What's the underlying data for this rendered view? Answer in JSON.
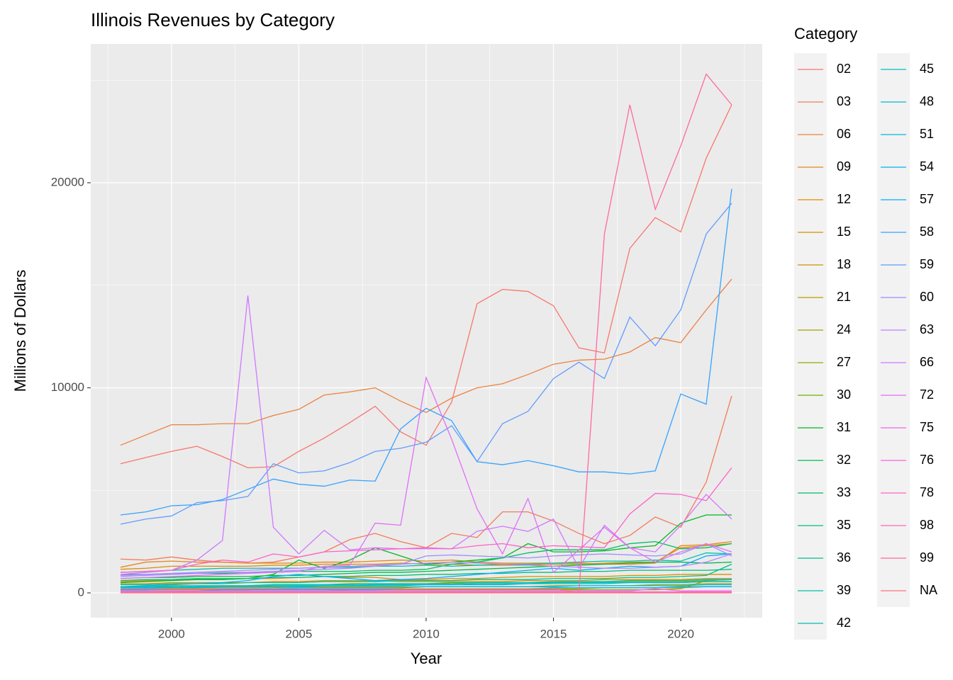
{
  "chart_data": {
    "type": "line",
    "title": "Illinois Revenues by Category",
    "x_label": "Year",
    "y_label": "Millions of Dollars",
    "legend_title": "Category",
    "x": [
      1998,
      1999,
      2000,
      2001,
      2002,
      2003,
      2004,
      2005,
      2006,
      2007,
      2008,
      2009,
      2010,
      2011,
      2012,
      2013,
      2014,
      2015,
      2016,
      2017,
      2018,
      2019,
      2020,
      2021,
      2022
    ],
    "xlim": [
      1996.83,
      2023.2
    ],
    "ylim": [
      -1209,
      26770
    ],
    "xticks": [
      2000,
      2005,
      2010,
      2015,
      2020
    ],
    "yticks": [
      0,
      10000,
      20000
    ],
    "grid": true,
    "series": [
      {
        "name": "02",
        "color": "#F8766D",
        "values": [
          6300,
          6600,
          6900,
          7150,
          6650,
          6100,
          6150,
          6900,
          7550,
          8300,
          9100,
          7850,
          7200,
          9300,
          14100,
          14800,
          14700,
          14000,
          11950,
          11700,
          16800,
          18300,
          17600,
          21200,
          23800
        ]
      },
      {
        "name": "03",
        "color": "#F37B59",
        "values": [
          1650,
          1600,
          1750,
          1600,
          1500,
          1450,
          1500,
          1750,
          2000,
          2600,
          2900,
          2500,
          2200,
          2900,
          2700,
          3950,
          3950,
          3500,
          2900,
          2400,
          2800,
          3700,
          3200,
          5400,
          9600
        ]
      },
      {
        "name": "06",
        "color": "#ED8141",
        "values": [
          7200,
          7700,
          8200,
          8200,
          8250,
          8250,
          8650,
          8950,
          9650,
          9800,
          10000,
          9350,
          8800,
          9500,
          10000,
          10200,
          10650,
          11150,
          11350,
          11400,
          11750,
          12450,
          12200,
          13800,
          15300
        ]
      },
      {
        "name": "09",
        "color": "#E7861B",
        "values": [
          1250,
          1500,
          1550,
          1500,
          1500,
          1450,
          1450,
          1450,
          1500,
          1500,
          1550,
          1600,
          1550,
          1600,
          1500,
          1450,
          1450,
          1450,
          1450,
          1400,
          1400,
          1450,
          2300,
          2350,
          2500
        ]
      },
      {
        "name": "12",
        "color": "#DF8C00",
        "values": [
          1150,
          1200,
          1300,
          1300,
          1300,
          1300,
          1350,
          1350,
          1400,
          1400,
          1400,
          1450,
          1400,
          1400,
          1350,
          1350,
          1350,
          1400,
          1400,
          1450,
          1500,
          1500,
          2200,
          2300,
          2400
        ]
      },
      {
        "name": "15",
        "color": "#D69100",
        "values": [
          550,
          600,
          600,
          650,
          650,
          700,
          700,
          750,
          800,
          750,
          750,
          650,
          650,
          700,
          700,
          750,
          800,
          800,
          800,
          800,
          850,
          850,
          900,
          900,
          900
        ]
      },
      {
        "name": "18",
        "color": "#CC9600",
        "values": [
          450,
          450,
          500,
          500,
          500,
          500,
          550,
          550,
          600,
          600,
          600,
          550,
          550,
          550,
          550,
          550,
          600,
          600,
          600,
          650,
          650,
          650,
          650,
          700,
          700
        ]
      },
      {
        "name": "21",
        "color": "#B29F00",
        "values": [
          200,
          200,
          200,
          250,
          250,
          250,
          250,
          300,
          300,
          300,
          300,
          300,
          300,
          300,
          300,
          300,
          300,
          350,
          350,
          350,
          350,
          400,
          400,
          450,
          450
        ]
      },
      {
        "name": "24",
        "color": "#A3A500",
        "values": [
          150,
          150,
          150,
          150,
          150,
          150,
          200,
          200,
          200,
          200,
          200,
          200,
          200,
          200,
          200,
          200,
          200,
          200,
          200,
          250,
          250,
          250,
          250,
          300,
          300
        ]
      },
      {
        "name": "27",
        "color": "#8EAB00",
        "values": [
          100,
          100,
          100,
          100,
          100,
          100,
          100,
          100,
          100,
          150,
          150,
          150,
          150,
          150,
          150,
          150,
          150,
          150,
          150,
          150,
          150,
          150,
          200,
          600,
          650
        ]
      },
      {
        "name": "30",
        "color": "#6BB100",
        "values": [
          300,
          300,
          350,
          350,
          350,
          350,
          400,
          400,
          400,
          450,
          450,
          450,
          450,
          500,
          500,
          500,
          500,
          500,
          550,
          550,
          550,
          550,
          550,
          600,
          650
        ]
      },
      {
        "name": "31",
        "color": "#00B81F",
        "values": [
          500,
          550,
          600,
          650,
          650,
          700,
          900,
          1600,
          1200,
          1600,
          2200,
          1800,
          1400,
          1500,
          1600,
          1700,
          2400,
          2000,
          2000,
          2050,
          2200,
          2300,
          3400,
          3800,
          3800
        ]
      },
      {
        "name": "32",
        "color": "#00BB4B",
        "values": [
          700,
          750,
          750,
          800,
          800,
          800,
          850,
          850,
          900,
          950,
          1000,
          1000,
          1050,
          1100,
          1150,
          1200,
          1250,
          1300,
          1350,
          1400,
          1450,
          1500,
          1500,
          1450,
          1500
        ]
      },
      {
        "name": "33",
        "color": "#00BD62",
        "values": [
          900,
          900,
          950,
          950,
          950,
          1000,
          1000,
          1050,
          1050,
          1050,
          1100,
          1100,
          1150,
          1400,
          1500,
          1700,
          1950,
          2100,
          2100,
          2100,
          2400,
          2500,
          2150,
          2200,
          2400
        ]
      },
      {
        "name": "35",
        "color": "#00BF77",
        "values": [
          600,
          650,
          650,
          700,
          700,
          700,
          750,
          750,
          800,
          800,
          850,
          850,
          900,
          900,
          950,
          950,
          1000,
          1000,
          1050,
          1050,
          1100,
          1100,
          1100,
          1100,
          1150
        ]
      },
      {
        "name": "36",
        "color": "#00C08B",
        "values": [
          400,
          400,
          450,
          450,
          450,
          500,
          500,
          500,
          550,
          550,
          550,
          600,
          600,
          600,
          650,
          650,
          650,
          700,
          700,
          700,
          750,
          750,
          800,
          850,
          1400
        ]
      },
      {
        "name": "39",
        "color": "#00C19F",
        "values": [
          250,
          250,
          250,
          300,
          300,
          300,
          350,
          350,
          350,
          350,
          400,
          400,
          400,
          400,
          450,
          450,
          450,
          500,
          500,
          500,
          500,
          500,
          500,
          550,
          550
        ]
      },
      {
        "name": "42",
        "color": "#00C0B2",
        "values": [
          1000,
          1050,
          1100,
          1150,
          1200,
          1200,
          1200,
          1200,
          1250,
          1250,
          1300,
          1300,
          1350,
          1300,
          1350,
          1400,
          1400,
          1450,
          1500,
          1550,
          1550,
          1600,
          1550,
          1950,
          1900
        ]
      },
      {
        "name": "45",
        "color": "#00BEC3",
        "values": [
          300,
          300,
          300,
          350,
          350,
          350,
          400,
          400,
          400,
          400,
          450,
          450,
          450,
          450,
          500,
          500,
          500,
          550,
          550,
          550,
          600,
          600,
          600,
          650,
          650
        ]
      },
      {
        "name": "48",
        "color": "#00BCD4",
        "values": [
          150,
          150,
          200,
          200,
          200,
          200,
          200,
          250,
          250,
          250,
          250,
          250,
          300,
          300,
          300,
          300,
          300,
          300,
          350,
          350,
          350,
          350,
          350,
          400,
          400
        ]
      },
      {
        "name": "51",
        "color": "#00B8E3",
        "values": [
          200,
          250,
          250,
          250,
          300,
          300,
          300,
          300,
          350,
          350,
          350,
          350,
          400,
          400,
          400,
          400,
          450,
          450,
          450,
          450,
          500,
          500,
          500,
          550,
          550
        ]
      },
      {
        "name": "54",
        "color": "#00B2F0",
        "values": [
          100,
          100,
          100,
          100,
          150,
          150,
          150,
          150,
          150,
          150,
          150,
          200,
          200,
          200,
          200,
          200,
          200,
          250,
          250,
          250,
          250,
          250,
          300,
          300,
          300
        ]
      },
      {
        "name": "57",
        "color": "#00ABFD",
        "values": [
          300,
          350,
          400,
          450,
          500,
          600,
          800,
          900,
          800,
          700,
          600,
          650,
          700,
          800,
          900,
          1000,
          1100,
          1200,
          1100,
          1200,
          1300,
          1250,
          1300,
          1800,
          1900
        ]
      },
      {
        "name": "58",
        "color": "#35A2FF",
        "values": [
          3800,
          3950,
          4250,
          4300,
          4550,
          5050,
          5550,
          5300,
          5200,
          5500,
          5450,
          8000,
          9000,
          8400,
          6400,
          6250,
          6450,
          6200,
          5900,
          5900,
          5800,
          5950,
          9700,
          9200,
          19700
        ]
      },
      {
        "name": "59",
        "color": "#619CFF",
        "values": [
          3350,
          3600,
          3750,
          4400,
          4500,
          4700,
          6300,
          5850,
          5950,
          6350,
          6900,
          7050,
          7350,
          8150,
          6400,
          8250,
          8850,
          10450,
          11250,
          10450,
          13450,
          12050,
          13800,
          17500,
          19000
        ]
      },
      {
        "name": "60",
        "color": "#9C8DFF",
        "values": [
          800,
          850,
          900,
          950,
          1000,
          1000,
          1050,
          1100,
          1150,
          1200,
          1300,
          1400,
          1800,
          1850,
          1800,
          1750,
          1700,
          1800,
          1850,
          1900,
          1850,
          1800,
          1900,
          2400,
          1800
        ]
      },
      {
        "name": "63",
        "color": "#B983FF",
        "values": [
          850,
          900,
          950,
          1000,
          1050,
          1100,
          1150,
          1200,
          1250,
          1300,
          1350,
          1400,
          1450,
          1500,
          1450,
          1400,
          1350,
          1300,
          1250,
          1200,
          1200,
          1250,
          1300,
          1500,
          1900
        ]
      },
      {
        "name": "66",
        "color": "#CF78FF",
        "values": [
          900,
          1000,
          1100,
          1600,
          2550,
          14500,
          3200,
          1900,
          3050,
          2100,
          2200,
          2150,
          2150,
          2150,
          3000,
          3250,
          3000,
          3600,
          1200,
          3300,
          2200,
          2000,
          3300,
          4800,
          3600
        ]
      },
      {
        "name": "72",
        "color": "#E26EF7",
        "values": [
          700,
          750,
          800,
          850,
          900,
          950,
          1000,
          1050,
          1300,
          1350,
          3400,
          3300,
          10500,
          7500,
          4100,
          1900,
          4600,
          1000,
          2100,
          3200,
          2200,
          1500,
          2000,
          2400,
          2000
        ]
      },
      {
        "name": "75",
        "color": "#F066EA",
        "values": [
          100,
          100,
          100,
          100,
          100,
          100,
          100,
          100,
          100,
          100,
          100,
          100,
          100,
          100,
          100,
          100,
          100,
          100,
          100,
          100,
          100,
          200,
          100,
          100,
          100
        ]
      },
      {
        "name": "76",
        "color": "#FA62DB",
        "values": [
          50,
          50,
          50,
          50,
          50,
          50,
          50,
          50,
          50,
          50,
          50,
          50,
          50,
          50,
          50,
          50,
          50,
          50,
          50,
          50,
          50,
          50,
          50,
          50,
          50
        ]
      },
      {
        "name": "78",
        "color": "#FF61C9",
        "values": [
          1000,
          1050,
          1100,
          1400,
          1600,
          1500,
          1900,
          1750,
          2000,
          2050,
          2100,
          2150,
          2200,
          2150,
          2300,
          2400,
          2200,
          2300,
          2250,
          2200,
          3850,
          4850,
          4800,
          4500,
          6100
        ]
      },
      {
        "name": "98",
        "color": "#FF64B5",
        "values": [
          0,
          0,
          0,
          0,
          0,
          0,
          0,
          0,
          0,
          0,
          0,
          0,
          0,
          0,
          0,
          0,
          0,
          0,
          0,
          0,
          0,
          0,
          0,
          0,
          0
        ]
      },
      {
        "name": "99",
        "color": "#FF6A9D",
        "values": [
          200,
          200,
          200,
          200,
          200,
          200,
          200,
          200,
          200,
          200,
          200,
          200,
          200,
          200,
          200,
          200,
          200,
          200,
          0,
          17500,
          23800,
          18700,
          21800,
          25300,
          23800
        ]
      },
      {
        "name": "NA",
        "color": "#FC717F",
        "values": [
          20,
          20,
          20,
          20,
          20,
          20,
          20,
          20,
          20,
          20,
          20,
          20,
          20,
          20,
          20,
          20,
          20,
          20,
          20,
          20,
          20,
          20,
          20,
          20,
          20
        ]
      }
    ]
  }
}
